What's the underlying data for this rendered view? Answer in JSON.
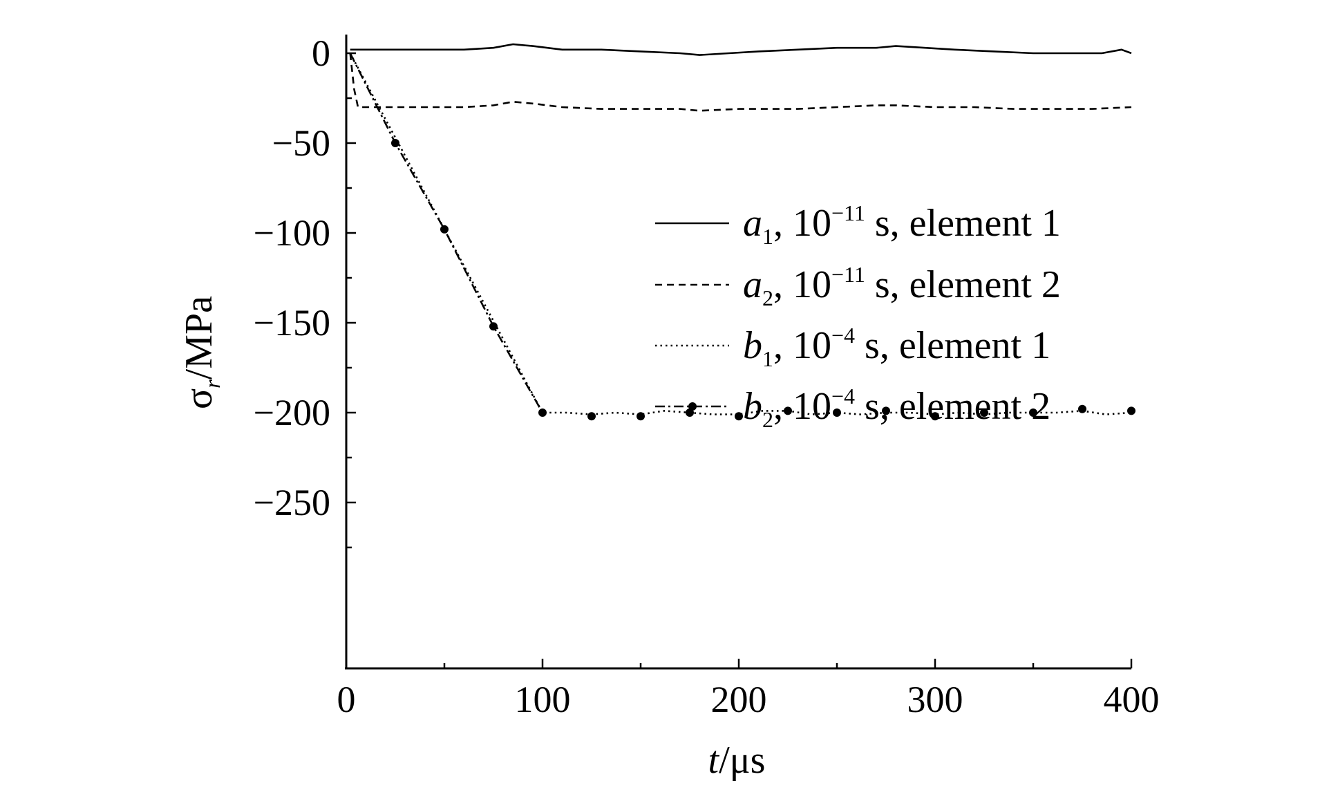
{
  "chart_data": {
    "type": "line",
    "xlabel": {
      "main": "t",
      "unit": "/μs"
    },
    "ylabel": {
      "main": "σ",
      "sub": "r",
      "unit": "/MPa"
    },
    "xlim": [
      0,
      400
    ],
    "ylim": [
      -275,
      8
    ],
    "xticks": [
      0,
      100,
      200,
      300,
      400
    ],
    "xtick_labels": [
      "0",
      "100",
      "200",
      "300",
      "400"
    ],
    "yticks": [
      0,
      -50,
      -100,
      -150,
      -200,
      -250
    ],
    "ytick_labels": [
      "0",
      "−50",
      "−100",
      "−150",
      "−200",
      "−250"
    ],
    "grid": false,
    "legend_position": "right-upper-middle",
    "series": [
      {
        "name": "a1, 10−11 s, element 1",
        "label": {
          "sym": "a",
          "sub": "1",
          "base": ", 10",
          "exp": "−11",
          "rest": " s, element 1"
        },
        "style": "solid",
        "x": [
          2,
          20,
          40,
          60,
          75,
          85,
          95,
          110,
          130,
          150,
          170,
          180,
          195,
          210,
          230,
          250,
          270,
          280,
          295,
          310,
          330,
          350,
          370,
          385,
          395,
          400
        ],
        "y": [
          2,
          2,
          2,
          2,
          3,
          5,
          4,
          2,
          2,
          1,
          0,
          -1,
          0,
          1,
          2,
          3,
          3,
          4,
          3,
          2,
          1,
          0,
          0,
          0,
          2,
          0
        ]
      },
      {
        "name": "a2, 10−11 s, element 2",
        "label": {
          "sym": "a",
          "sub": "2",
          "base": ", 10",
          "exp": "−11",
          "rest": " s, element 2"
        },
        "style": "dashed",
        "x": [
          2,
          4,
          6,
          10,
          30,
          60,
          75,
          85,
          95,
          110,
          130,
          150,
          170,
          180,
          200,
          230,
          250,
          270,
          280,
          300,
          320,
          340,
          360,
          380,
          400
        ],
        "y": [
          0,
          -20,
          -30,
          -30,
          -30,
          -30,
          -29,
          -27,
          -28,
          -30,
          -31,
          -31,
          -31,
          -32,
          -31,
          -31,
          -30,
          -29,
          -29,
          -30,
          -30,
          -31,
          -31,
          -31,
          -30
        ]
      },
      {
        "name": "b1, 10−4 s, element 1",
        "label": {
          "sym": "b",
          "sub": "1",
          "base": ", 10",
          "exp": "−4",
          "rest": " s, element 1"
        },
        "style": "dotted",
        "x": [
          2,
          100,
          112,
          125,
          137,
          150,
          162,
          175,
          187,
          200,
          212,
          225,
          237,
          250,
          262,
          275,
          287,
          300,
          312,
          325,
          337,
          350,
          362,
          375,
          387,
          400
        ],
        "y": [
          0,
          -200,
          -200,
          -201,
          -200,
          -201,
          -199,
          -200,
          -201,
          -201,
          -199,
          -199,
          -201,
          -200,
          -201,
          -200,
          -200,
          -201,
          -200,
          -201,
          -200,
          -200,
          -200,
          -199,
          -201,
          -200
        ]
      },
      {
        "name": "b2, 10−4 s, element 2",
        "label": {
          "sym": "b",
          "sub": "2",
          "base": ", 10",
          "exp": "−4",
          "rest": " s, element 2"
        },
        "style": "dash-dot-markers",
        "x": [
          2,
          25,
          50,
          75,
          100
        ],
        "y": [
          0,
          -50,
          -98,
          -152,
          -200
        ],
        "markers_x": [
          25,
          50,
          75,
          100,
          125,
          150,
          175,
          200,
          225,
          250,
          275,
          300,
          325,
          350,
          375,
          400
        ],
        "markers_y": [
          -50,
          -98,
          -152,
          -200,
          -202,
          -202,
          -200,
          -202,
          -199,
          -200,
          -199,
          -202,
          -200,
          -200,
          -198,
          -199
        ]
      }
    ]
  }
}
